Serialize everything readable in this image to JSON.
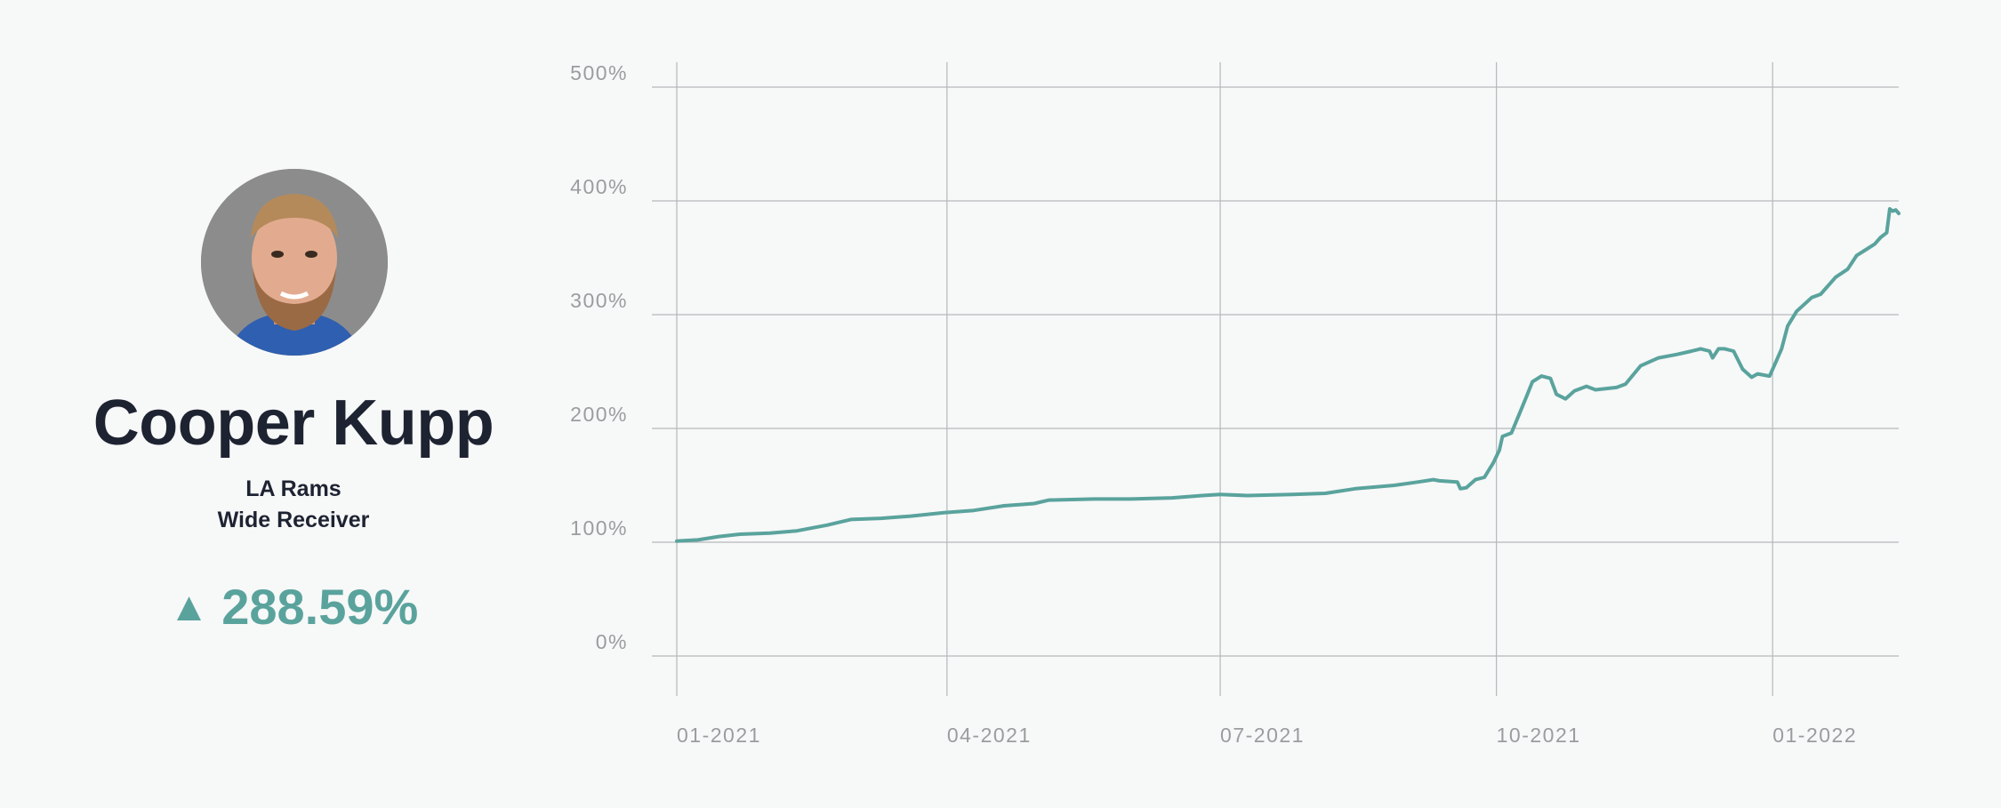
{
  "player": {
    "name": "Cooper Kupp",
    "team": "LA Rams",
    "position": "Wide Receiver",
    "change_indicator": "▲",
    "change_value": "288.59%",
    "accent_color": "#5aa39d"
  },
  "chart_data": {
    "type": "line",
    "title": "",
    "xlabel": "",
    "ylabel": "",
    "ylim": [
      0,
      500
    ],
    "y_ticks": [
      0,
      100,
      200,
      300,
      400,
      500
    ],
    "y_tick_labels": [
      "0%",
      "100%",
      "200%",
      "300%",
      "400%",
      "500%"
    ],
    "x_ticks": [
      "2021-01-01",
      "2021-04-01",
      "2021-07-01",
      "2021-10-01",
      "2022-01-01"
    ],
    "x_tick_labels": [
      "01-2021",
      "04-2021",
      "07-2021",
      "10-2021",
      "01-2022"
    ],
    "xlim": [
      "2021-01-01",
      "2022-02-12"
    ],
    "grid": true,
    "line_color": "#5aa39d",
    "series": [
      {
        "points": [
          [
            "2021-01-01",
            101
          ],
          [
            "2021-01-08",
            102
          ],
          [
            "2021-01-15",
            105
          ],
          [
            "2021-01-22",
            107
          ],
          [
            "2021-02-01",
            108
          ],
          [
            "2021-02-10",
            110
          ],
          [
            "2021-02-20",
            115
          ],
          [
            "2021-02-28",
            120
          ],
          [
            "2021-03-10",
            121
          ],
          [
            "2021-03-20",
            123
          ],
          [
            "2021-03-31",
            126
          ],
          [
            "2021-04-10",
            128
          ],
          [
            "2021-04-20",
            132
          ],
          [
            "2021-04-30",
            134
          ],
          [
            "2021-05-05",
            137
          ],
          [
            "2021-05-20",
            138
          ],
          [
            "2021-06-01",
            138
          ],
          [
            "2021-06-15",
            139
          ],
          [
            "2021-06-25",
            141
          ],
          [
            "2021-07-01",
            142
          ],
          [
            "2021-07-10",
            141
          ],
          [
            "2021-07-25",
            142
          ],
          [
            "2021-08-05",
            143
          ],
          [
            "2021-08-15",
            147
          ],
          [
            "2021-08-28",
            150
          ],
          [
            "2021-09-05",
            153
          ],
          [
            "2021-09-10",
            155
          ],
          [
            "2021-09-12",
            154
          ],
          [
            "2021-09-18",
            153
          ],
          [
            "2021-09-19",
            147
          ],
          [
            "2021-09-21",
            148
          ],
          [
            "2021-09-24",
            155
          ],
          [
            "2021-09-27",
            157
          ],
          [
            "2021-09-30",
            170
          ],
          [
            "2021-10-02",
            181
          ],
          [
            "2021-10-03",
            193
          ],
          [
            "2021-10-06",
            196
          ],
          [
            "2021-10-09",
            215
          ],
          [
            "2021-10-11",
            228
          ],
          [
            "2021-10-13",
            241
          ],
          [
            "2021-10-16",
            246
          ],
          [
            "2021-10-19",
            244
          ],
          [
            "2021-10-21",
            230
          ],
          [
            "2021-10-24",
            226
          ],
          [
            "2021-10-27",
            233
          ],
          [
            "2021-10-31",
            237
          ],
          [
            "2021-11-03",
            234
          ],
          [
            "2021-11-10",
            236
          ],
          [
            "2021-11-13",
            239
          ],
          [
            "2021-11-18",
            255
          ],
          [
            "2021-11-24",
            262
          ],
          [
            "2021-11-30",
            265
          ],
          [
            "2021-12-05",
            268
          ],
          [
            "2021-12-08",
            270
          ],
          [
            "2021-12-11",
            268
          ],
          [
            "2021-12-12",
            262
          ],
          [
            "2021-12-14",
            270
          ],
          [
            "2021-12-16",
            270
          ],
          [
            "2021-12-19",
            268
          ],
          [
            "2021-12-22",
            252
          ],
          [
            "2021-12-25",
            245
          ],
          [
            "2021-12-27",
            248
          ],
          [
            "2021-12-31",
            246
          ],
          [
            "2022-01-02",
            258
          ],
          [
            "2022-01-04",
            270
          ],
          [
            "2022-01-06",
            290
          ],
          [
            "2022-01-09",
            303
          ],
          [
            "2022-01-14",
            315
          ],
          [
            "2022-01-17",
            318
          ],
          [
            "2022-01-22",
            333
          ],
          [
            "2022-01-26",
            340
          ],
          [
            "2022-01-29",
            352
          ],
          [
            "2022-02-01",
            357
          ],
          [
            "2022-02-04",
            362
          ],
          [
            "2022-02-06",
            368
          ],
          [
            "2022-02-08",
            372
          ],
          [
            "2022-02-09",
            393
          ],
          [
            "2022-02-10",
            391
          ],
          [
            "2022-02-11",
            392
          ],
          [
            "2022-02-12",
            389
          ]
        ]
      }
    ]
  }
}
